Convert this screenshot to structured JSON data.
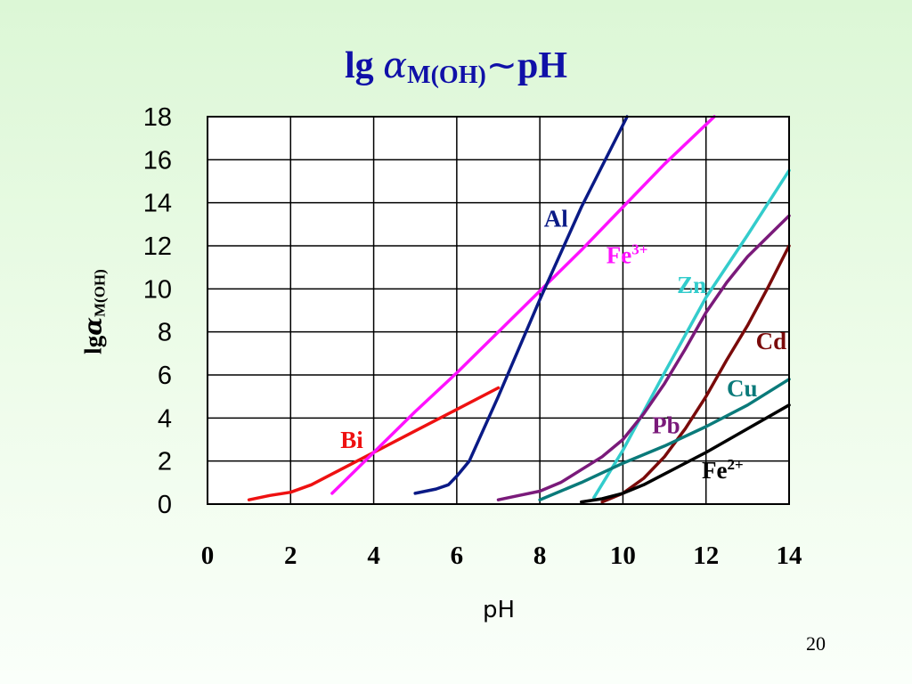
{
  "title": {
    "prefix": "lg ",
    "alpha": "α",
    "subscript": "M(OH)",
    "tilde": "~",
    "suffix": "pH"
  },
  "page_number": "20",
  "chart_data": {
    "type": "line",
    "title": "lg αM(OH)~pH",
    "xlabel": "pH",
    "ylabel": "lgαM(OH)",
    "xlim": [
      0,
      14
    ],
    "ylim": [
      0,
      18
    ],
    "xticks": [
      0,
      2,
      4,
      6,
      8,
      10,
      12,
      14
    ],
    "yticks": [
      0,
      2,
      4,
      6,
      8,
      10,
      12,
      14,
      16,
      18
    ],
    "grid": true,
    "series": [
      {
        "name": "Bi",
        "label_text": "Bi",
        "label_sup": "",
        "color": "#ee1111",
        "points": [
          [
            1,
            0.2
          ],
          [
            1.5,
            0.4
          ],
          [
            2,
            0.55
          ],
          [
            2.5,
            0.9
          ],
          [
            3,
            1.4
          ],
          [
            4,
            2.4
          ],
          [
            5,
            3.4
          ],
          [
            6,
            4.4
          ],
          [
            7,
            5.4
          ]
        ]
      },
      {
        "name": "Fe³⁺",
        "label_text": "Fe",
        "label_sup": "3+",
        "color": "#ff11ff",
        "points": [
          [
            3,
            0.5
          ],
          [
            4,
            2.4
          ],
          [
            5,
            4.3
          ],
          [
            6,
            6.1
          ],
          [
            7,
            8
          ],
          [
            8,
            9.9
          ],
          [
            9,
            11.8
          ],
          [
            10,
            13.8
          ],
          [
            11,
            15.8
          ],
          [
            12.2,
            18
          ]
        ]
      },
      {
        "name": "Al",
        "label_text": "Al",
        "label_sup": "",
        "color": "#0a1a86",
        "points": [
          [
            5,
            0.5
          ],
          [
            5.5,
            0.7
          ],
          [
            5.8,
            0.9
          ],
          [
            6,
            1.3
          ],
          [
            6.3,
            2
          ],
          [
            7,
            5
          ],
          [
            8,
            9.5
          ],
          [
            9,
            13.8
          ],
          [
            10.1,
            18
          ]
        ]
      },
      {
        "name": "Zn",
        "label_text": "Zn",
        "label_sup": "",
        "color": "#33cccc",
        "points": [
          [
            9.3,
            0.3
          ],
          [
            10,
            2.5
          ],
          [
            11,
            6.1
          ],
          [
            12,
            9.6
          ],
          [
            13,
            12.5
          ],
          [
            14,
            15.5
          ]
        ]
      },
      {
        "name": "Pb",
        "label_text": "Pb",
        "label_sup": "",
        "color": "#7a1a7a",
        "points": [
          [
            7,
            0.2
          ],
          [
            7.5,
            0.4
          ],
          [
            8,
            0.6
          ],
          [
            8.5,
            1
          ],
          [
            9,
            1.6
          ],
          [
            9.5,
            2.2
          ],
          [
            10,
            3
          ],
          [
            10.5,
            4.2
          ],
          [
            11,
            5.6
          ],
          [
            11.5,
            7.2
          ],
          [
            12,
            8.9
          ],
          [
            12.5,
            10.3
          ],
          [
            13,
            11.5
          ],
          [
            14,
            13.4
          ]
        ]
      },
      {
        "name": "Cd",
        "label_text": "Cd",
        "label_sup": "",
        "color": "#7a0a0a",
        "points": [
          [
            9.5,
            0.1
          ],
          [
            10,
            0.5
          ],
          [
            10.5,
            1.2
          ],
          [
            11,
            2.2
          ],
          [
            11.5,
            3.5
          ],
          [
            12,
            5
          ],
          [
            12.5,
            6.7
          ],
          [
            13,
            8.3
          ],
          [
            13.5,
            10.1
          ],
          [
            14,
            12
          ]
        ]
      },
      {
        "name": "Cu",
        "label_text": "Cu",
        "label_sup": "",
        "color": "#0a7a7a",
        "points": [
          [
            8,
            0.2
          ],
          [
            9,
            1
          ],
          [
            10,
            1.9
          ],
          [
            11,
            2.7
          ],
          [
            12,
            3.6
          ],
          [
            13,
            4.6
          ],
          [
            14,
            5.8
          ]
        ]
      },
      {
        "name": "Fe²⁺",
        "label_text": "Fe",
        "label_sup": "2+",
        "color": "#000000",
        "points": [
          [
            9,
            0.1
          ],
          [
            9.5,
            0.25
          ],
          [
            10,
            0.5
          ],
          [
            10.5,
            0.9
          ],
          [
            11,
            1.4
          ],
          [
            12,
            2.4
          ],
          [
            13,
            3.5
          ],
          [
            14,
            4.6
          ]
        ]
      }
    ],
    "label_anchor": {
      "Bi": [
        3.2,
        2.6
      ],
      "Fe³⁺": [
        9.6,
        11.2
      ],
      "Al": [
        8.1,
        12.9
      ],
      "Zn": [
        11.3,
        9.8
      ],
      "Pb": [
        10.7,
        3.3
      ],
      "Cd": [
        13.2,
        7.2
      ],
      "Cu": [
        12.5,
        5.0
      ],
      "Fe²⁺": [
        11.9,
        1.2
      ]
    }
  }
}
